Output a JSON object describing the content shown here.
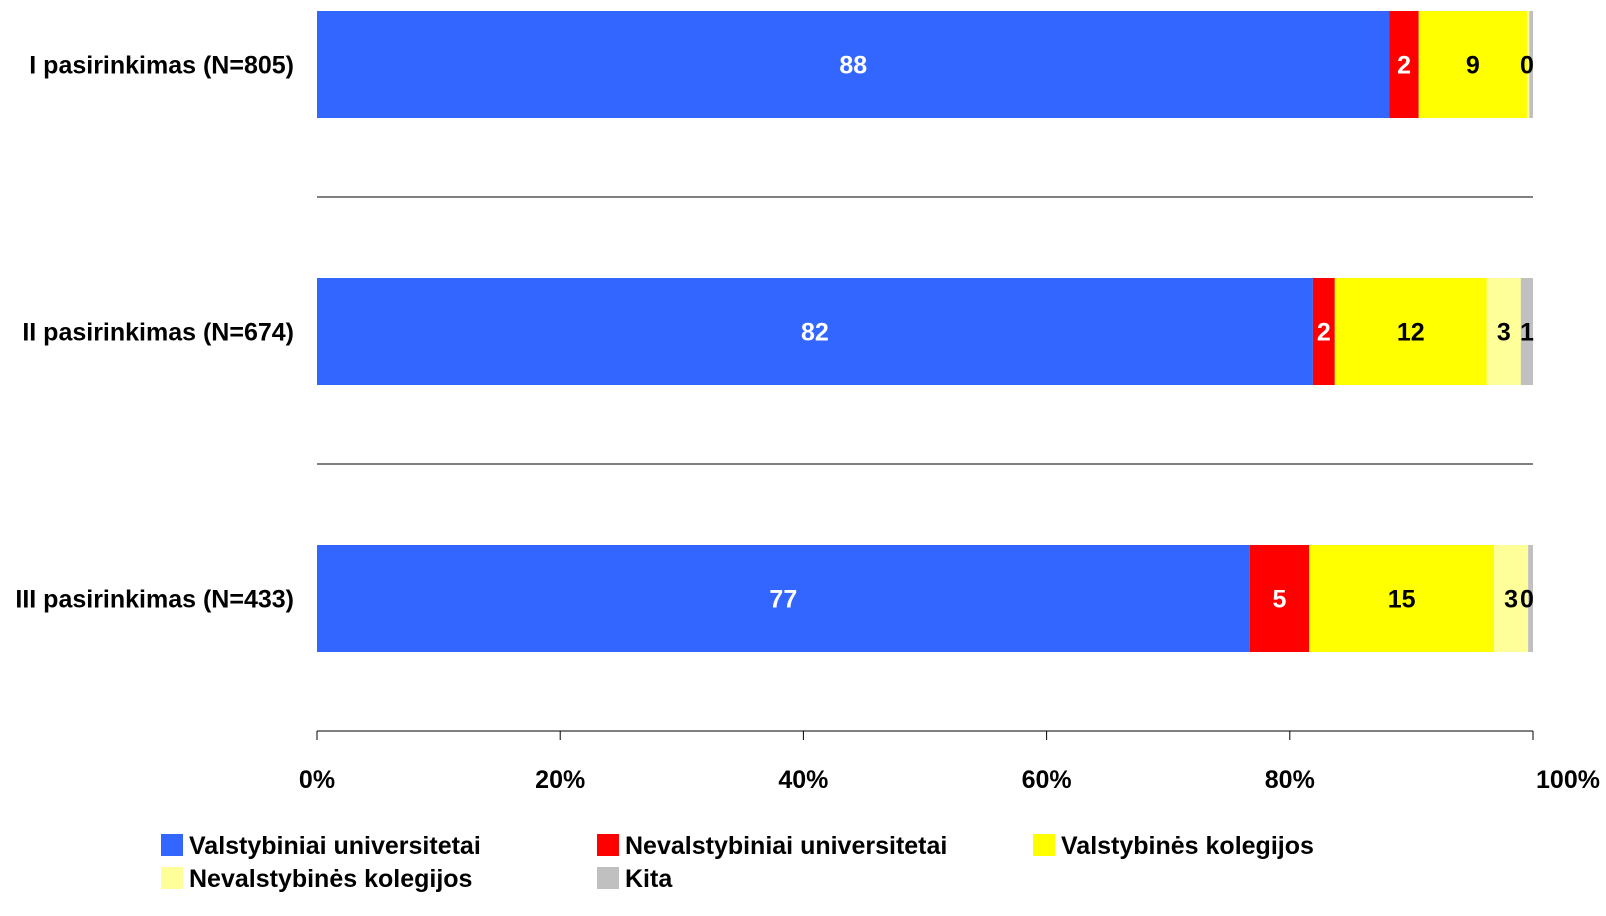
{
  "chart_data": {
    "type": "bar",
    "orientation": "horizontal",
    "stacked": "percent",
    "categories": [
      "I pasirinkimas (N=805)",
      "II pasirinkimas (N=674)",
      "III pasirinkimas (N=433)"
    ],
    "series": [
      {
        "name": "Valstybiniai universitetai",
        "color": "#3366FF",
        "label_color": "#FFFFFF",
        "values": [
          88.2,
          81.9,
          76.7
        ],
        "labels": [
          "88",
          "82",
          "77"
        ]
      },
      {
        "name": "Nevalstybiniai universitetai",
        "color": "#FF0000",
        "label_color": "#FFFFFF",
        "values": [
          2.4,
          1.8,
          4.9
        ],
        "labels": [
          "2",
          "2",
          "5"
        ]
      },
      {
        "name": "Valstybinės kolegijos",
        "color": "#FFFF00",
        "label_color": "#000000",
        "values": [
          8.9,
          12.5,
          15.2
        ],
        "labels": [
          "9",
          "12",
          "15"
        ]
      },
      {
        "name": "Nevalstybinės kolegijos",
        "color": "#FFFF99",
        "label_color": "#000000",
        "values": [
          0.2,
          2.8,
          2.8
        ],
        "labels": [
          "",
          "3",
          "3"
        ]
      },
      {
        "name": "Kita",
        "color": "#C0C0C0",
        "label_color": "#000000",
        "values": [
          0.3,
          1.0,
          0.4
        ],
        "labels": [
          "0",
          "1",
          "0"
        ]
      }
    ],
    "x_ticks": [
      "0%",
      "20%",
      "40%",
      "60%",
      "80%",
      "100%"
    ],
    "xlim": [
      0,
      100
    ],
    "legend_position": "bottom",
    "grid": false
  }
}
